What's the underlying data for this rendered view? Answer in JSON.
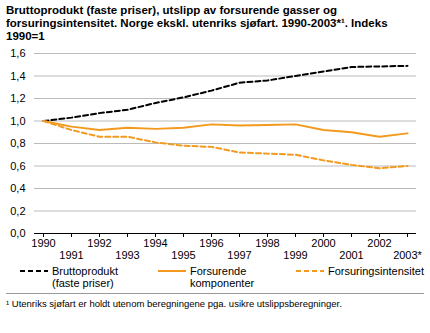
{
  "chart_data": {
    "type": "line",
    "title": "Bruttoprodukt (faste priser), utslipp av forsurende gasser og forsuringsintensitet. Norge ekskl. utenriks sjøfart. 1990-2003*¹. Indeks 1990=1",
    "footnote": "¹ Utenriks sjøfart er holdt utenom beregningene pga. usikre utslippsberegninger.",
    "categories": [
      "1990",
      "1991",
      "1992",
      "1993",
      "1994",
      "1995",
      "1996",
      "1997",
      "1998",
      "1999",
      "2000",
      "2001",
      "2002",
      "2003*"
    ],
    "series": [
      {
        "name": "Bruttoprodukt (faste priser)",
        "color": "#000000",
        "line_style": "dashed",
        "values": [
          1.0,
          1.03,
          1.07,
          1.1,
          1.16,
          1.21,
          1.27,
          1.34,
          1.36,
          1.4,
          1.44,
          1.48,
          1.485,
          1.49
        ]
      },
      {
        "name": "Forsurende komponenter",
        "color": "#f39a1e",
        "line_style": "solid",
        "values": [
          1.0,
          0.95,
          0.92,
          0.94,
          0.93,
          0.94,
          0.97,
          0.96,
          0.965,
          0.97,
          0.92,
          0.9,
          0.86,
          0.89
        ]
      },
      {
        "name": "Forsuringsintensitet",
        "color": "#f39a1e",
        "line_style": "dashed",
        "values": [
          1.0,
          0.92,
          0.86,
          0.86,
          0.81,
          0.78,
          0.77,
          0.72,
          0.71,
          0.7,
          0.65,
          0.61,
          0.58,
          0.6
        ]
      }
    ],
    "ylim": [
      0,
      1.6
    ],
    "yticks": [
      {
        "value": 0,
        "label": "0,0"
      },
      {
        "value": 0.2,
        "label": "0,2"
      },
      {
        "value": 0.4,
        "label": "0,4"
      },
      {
        "value": 0.6,
        "label": "0,6"
      },
      {
        "value": 0.8,
        "label": "0,8"
      },
      {
        "value": 1.0,
        "label": "1,0"
      },
      {
        "value": 1.2,
        "label": "1,2"
      },
      {
        "value": 1.4,
        "label": "1,4"
      },
      {
        "value": 1.6,
        "label": "1,6"
      }
    ],
    "grid": true,
    "legend": "bottom"
  }
}
